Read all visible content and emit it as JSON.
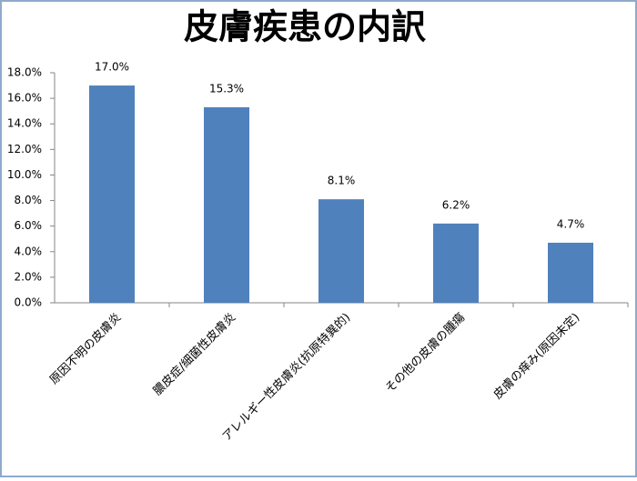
{
  "chart_data": {
    "type": "bar",
    "title": "皮膚疾患の内訳",
    "categories": [
      "原因不明の皮膚炎",
      "膿皮症/細菌性皮膚炎",
      "アレルギー性皮膚炎(抗原特異的)",
      "その他の皮膚の腫瘍",
      "皮膚の痒み(原因未定)"
    ],
    "values": [
      17.0,
      15.3,
      8.1,
      6.2,
      4.7
    ],
    "value_labels": [
      "17.0%",
      "15.3%",
      "8.1%",
      "6.2%",
      "4.7%"
    ],
    "color": "#4f81bd",
    "ylim": [
      0,
      18
    ],
    "yticks": [
      {
        "value": 0,
        "label": "0.0%"
      },
      {
        "value": 2,
        "label": "2.0%"
      },
      {
        "value": 4,
        "label": "4.0%"
      },
      {
        "value": 6,
        "label": "6.0%"
      },
      {
        "value": 8,
        "label": "8.0%"
      },
      {
        "value": 10,
        "label": "10.0%"
      },
      {
        "value": 12,
        "label": "12.0%"
      },
      {
        "value": 14,
        "label": "14.0%"
      },
      {
        "value": 16,
        "label": "16.0%"
      },
      {
        "value": 18,
        "label": "18.0%"
      }
    ],
    "grid": false
  }
}
